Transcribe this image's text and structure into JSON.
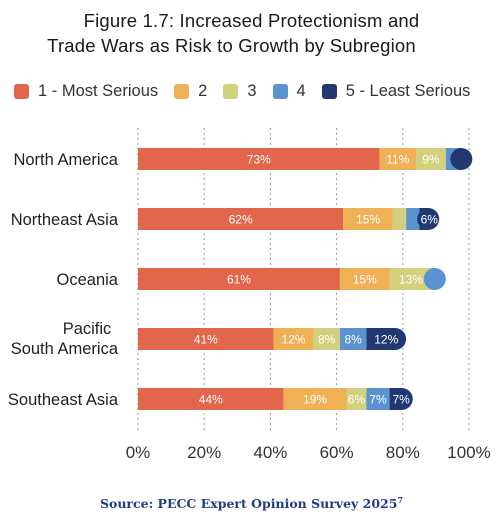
{
  "chart_data": {
    "type": "bar",
    "orientation": "horizontal",
    "stacked": true,
    "title_lines": [
      "Figure 1.7: Increased Protectionism and",
      "Trade Wars as Risk to Growth by Subregion"
    ],
    "legend_position": "top",
    "categories": [
      "North America",
      "Northeast Asia",
      "Oceania",
      "Pacific South America",
      "Southeast Asia"
    ],
    "series": [
      {
        "name": "1 - Most Serious",
        "color": "#e2664b",
        "values": [
          73,
          62,
          61,
          41,
          44
        ]
      },
      {
        "name": "2",
        "color": "#f0b055",
        "values": [
          11,
          15,
          15,
          12,
          19
        ]
      },
      {
        "name": "3",
        "color": "#d3d07d",
        "values": [
          9,
          4,
          13,
          8,
          6
        ]
      },
      {
        "name": "4",
        "color": "#5b93d0",
        "values": [
          4,
          4,
          4,
          8,
          7
        ]
      },
      {
        "name": "5 - Least Serious",
        "color": "#213872",
        "values": [
          4,
          6,
          0,
          12,
          7
        ]
      }
    ],
    "data_labels": [
      [
        "73%",
        "11%",
        "9%",
        "",
        ""
      ],
      [
        "62%",
        "15%",
        "",
        "",
        "6%"
      ],
      [
        "61%",
        "15%",
        "13%",
        "",
        ""
      ],
      [
        "41%",
        "12%",
        "8%",
        "8%",
        "12%"
      ],
      [
        "44%",
        "19%",
        "6%",
        "7%",
        "7%"
      ]
    ],
    "xlim": [
      0,
      100
    ],
    "xticks": [
      "0%",
      "20%",
      "40%",
      "60%",
      "80%",
      "100%"
    ],
    "grid": "vertical-dashed"
  },
  "source": {
    "text": "Source: PECC Expert Opinion Survey 2025",
    "superscript": "7"
  }
}
